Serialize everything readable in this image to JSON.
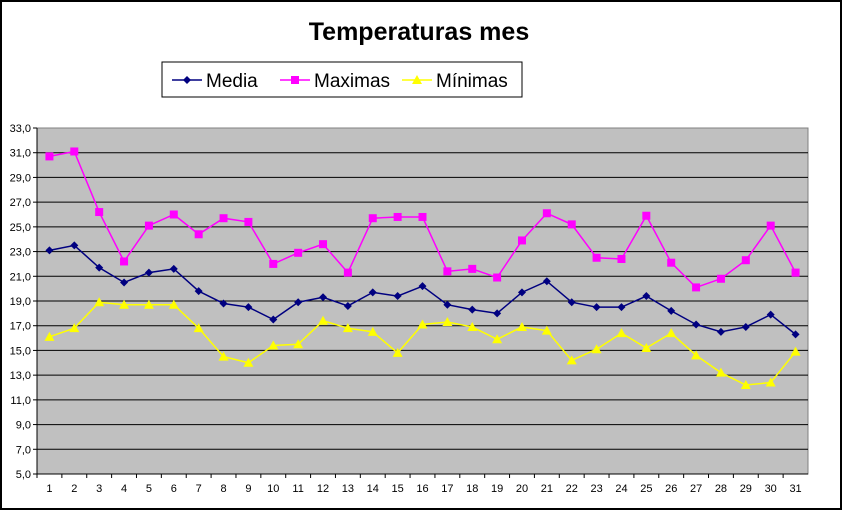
{
  "chart_data": {
    "type": "line",
    "title": "Temperaturas mes",
    "xlabel": "",
    "ylabel": "",
    "categories": [
      "1",
      "2",
      "3",
      "4",
      "5",
      "6",
      "7",
      "8",
      "9",
      "10",
      "11",
      "12",
      "13",
      "14",
      "15",
      "16",
      "17",
      "18",
      "19",
      "20",
      "21",
      "22",
      "23",
      "24",
      "25",
      "26",
      "27",
      "28",
      "29",
      "30",
      "31"
    ],
    "ylim": [
      5.0,
      33.0
    ],
    "ytick_step": 2.0,
    "yticks": [
      "5,0",
      "7,0",
      "9,0",
      "11,0",
      "13,0",
      "15,0",
      "17,0",
      "19,0",
      "21,0",
      "23,0",
      "25,0",
      "27,0",
      "29,0",
      "31,0",
      "33,0"
    ],
    "grid": "horizontal",
    "plot_background": "#C0C0C0",
    "legend_position": "top",
    "series": [
      {
        "name": "Media",
        "color": "#000080",
        "marker": "diamond",
        "values": [
          23.1,
          23.5,
          21.7,
          20.5,
          21.3,
          21.6,
          19.8,
          18.8,
          18.5,
          17.5,
          18.9,
          19.3,
          18.6,
          19.7,
          19.4,
          20.2,
          18.7,
          18.3,
          18.0,
          19.7,
          20.6,
          18.9,
          18.5,
          18.5,
          19.4,
          18.2,
          17.1,
          16.5,
          16.9,
          17.9,
          16.3
        ]
      },
      {
        "name": "Maximas",
        "color": "#FF00FF",
        "marker": "square",
        "values": [
          30.7,
          31.1,
          26.2,
          22.2,
          25.1,
          26.0,
          24.4,
          25.7,
          25.4,
          22.0,
          22.9,
          23.6,
          21.3,
          25.7,
          25.8,
          25.8,
          21.4,
          21.6,
          20.9,
          23.9,
          26.1,
          25.2,
          22.5,
          22.4,
          25.9,
          22.1,
          20.1,
          20.8,
          22.3,
          25.1,
          21.3
        ]
      },
      {
        "name": "Mínimas",
        "color": "#FFFF00",
        "marker": "triangle",
        "values": [
          16.1,
          16.8,
          18.9,
          18.7,
          18.7,
          18.7,
          16.8,
          14.5,
          14.0,
          15.4,
          15.5,
          17.4,
          16.8,
          16.5,
          14.8,
          17.1,
          17.3,
          16.9,
          15.9,
          16.9,
          16.6,
          14.2,
          15.1,
          16.4,
          15.2,
          16.4,
          14.6,
          13.2,
          12.2,
          12.4,
          14.9
        ]
      }
    ]
  }
}
